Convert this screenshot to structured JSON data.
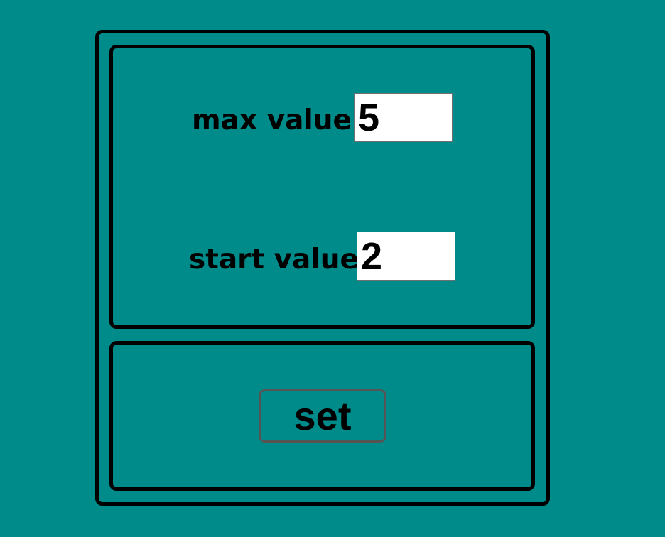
{
  "settings": {
    "max_value": {
      "label": "max value:",
      "value": "5"
    },
    "start_value": {
      "label": "start value:",
      "value": "2"
    }
  },
  "actions": {
    "set_label": "set"
  },
  "colors": {
    "background": "#008b8b",
    "border": "#000000",
    "input_background": "#ffffff"
  }
}
